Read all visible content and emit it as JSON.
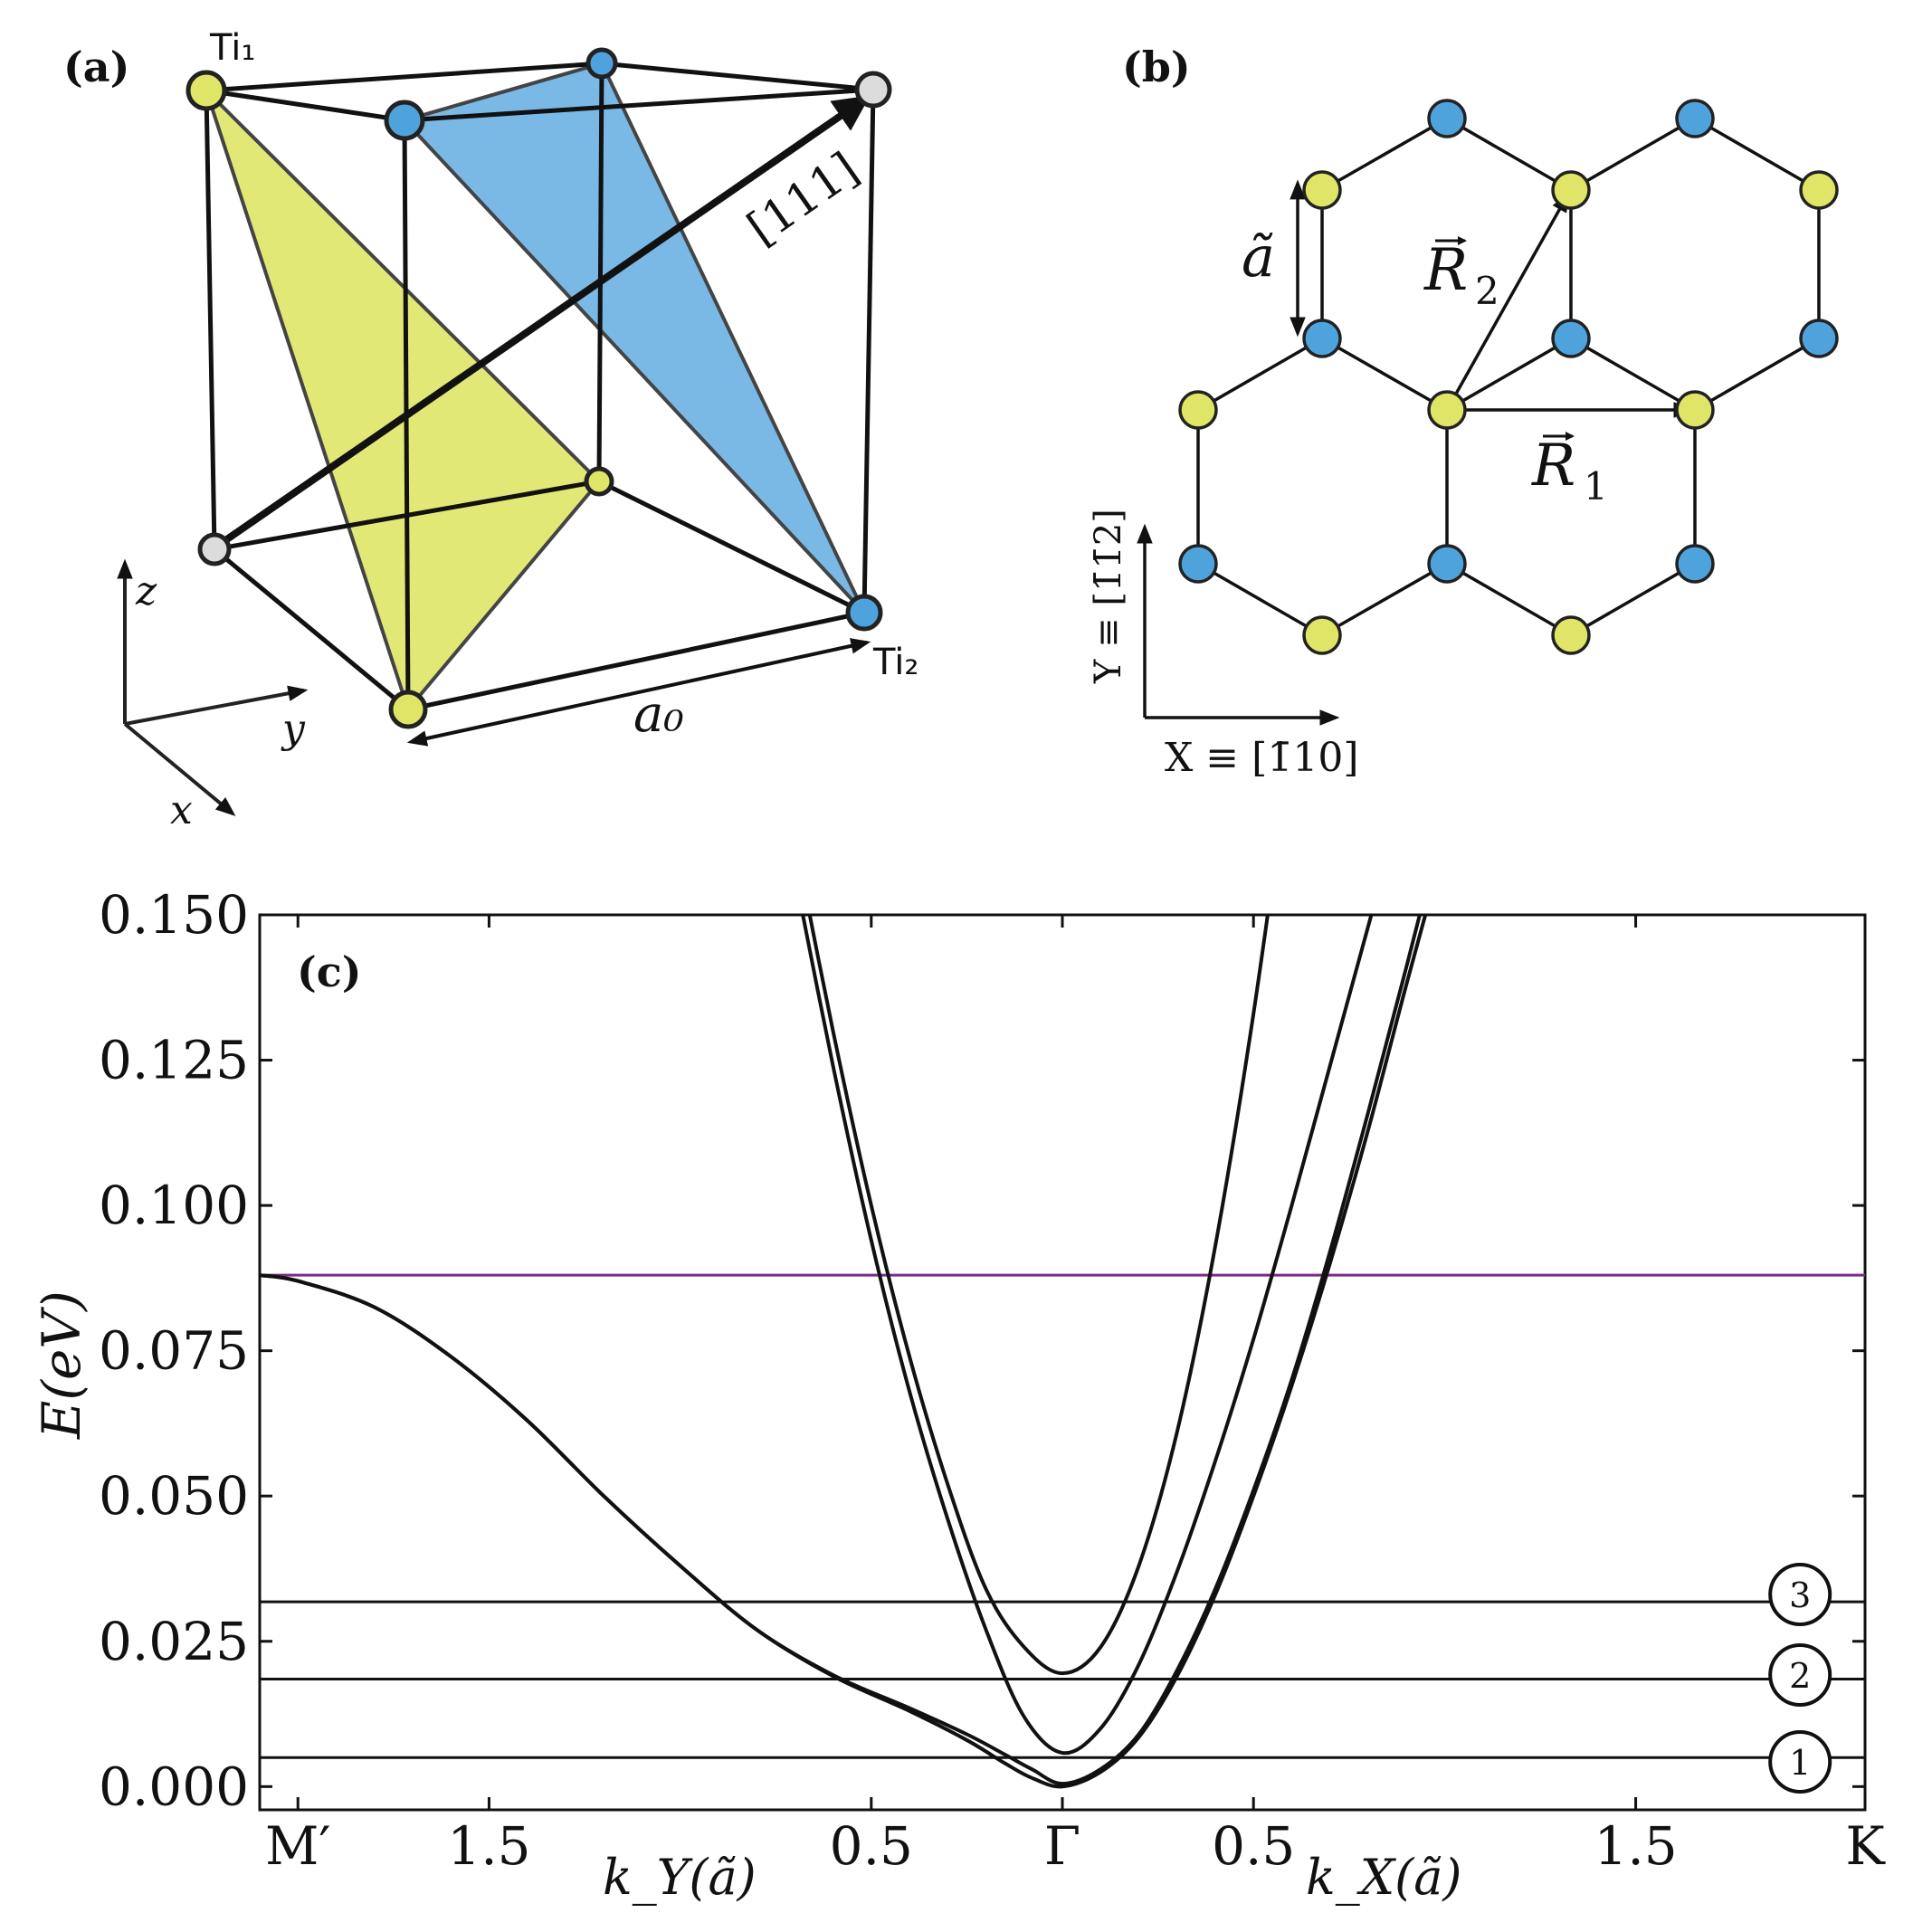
{
  "colors": {
    "yellow": "#dfe566",
    "blue": "#4fa3dc",
    "grey": "#dcdcdc",
    "yellow_plane": "#dde45e",
    "blue_plane": "#63ade0",
    "fermi_line": "#7b2a8a",
    "ink": "#111111"
  },
  "panel_a": {
    "label": "(a)",
    "ti1": "Ti₁",
    "ti2": "Ti₂",
    "direction": "[111]",
    "lattice_const": "a₀",
    "axis_x": "x",
    "axis_y": "y",
    "axis_z": "z"
  },
  "panel_b": {
    "label": "(b)",
    "a_tilde": "ã",
    "r1": "R",
    "r1_sub": "1",
    "r2": "R",
    "r2_sub": "2",
    "x_axis_label": "X ≡ [1̄10]",
    "y_axis_label": "Y ≡ [1̄1̄2]"
  },
  "chart_data": {
    "type": "line",
    "panel_label": "(c)",
    "ylabel": "E(eV)",
    "ylim": [
      -0.004,
      0.15
    ],
    "yticks": [
      "0.000",
      "0.025",
      "0.050",
      "0.075",
      "0.100",
      "0.125",
      "0.150"
    ],
    "ytick_values": [
      0.0,
      0.025,
      0.05,
      0.075,
      0.1,
      0.125,
      0.15
    ],
    "xlim": [
      -2.1,
      2.1
    ],
    "xticks": [
      "M′",
      "1.5",
      "0.5",
      "Γ",
      "0.5",
      "1.5",
      "K"
    ],
    "xtick_values": [
      -2.0,
      -1.5,
      -0.5,
      0.0,
      0.5,
      1.5,
      2.1
    ],
    "xlabel_left": "k_Y(ã)",
    "xlabel_right": "k_X(ã)",
    "fermi_level": 0.088,
    "levels": [
      {
        "label": "1",
        "energy": 0.005
      },
      {
        "label": "2",
        "energy": 0.0185
      },
      {
        "label": "3",
        "energy": 0.0318
      }
    ],
    "series": [
      {
        "points": [
          [
            -2.1,
            0.088
          ],
          [
            -2.0,
            0.087
          ],
          [
            -1.8,
            0.0825
          ],
          [
            -1.6,
            0.074
          ],
          [
            -1.4,
            0.063
          ],
          [
            -1.2,
            0.05
          ],
          [
            -1.0,
            0.038
          ],
          [
            -0.8,
            0.027
          ],
          [
            -0.6,
            0.019
          ],
          [
            -0.4,
            0.013
          ],
          [
            -0.25,
            0.008
          ],
          [
            -0.15,
            0.004
          ],
          [
            -0.08,
            0.0015
          ],
          [
            0.0,
            0.0
          ],
          [
            0.1,
            0.0025
          ],
          [
            0.2,
            0.0085
          ],
          [
            0.3,
            0.019
          ],
          [
            0.4,
            0.033
          ],
          [
            0.5,
            0.05
          ],
          [
            0.6,
            0.069
          ],
          [
            0.7,
            0.09
          ],
          [
            0.8,
            0.113
          ],
          [
            0.9,
            0.138
          ],
          [
            1.0,
            0.162
          ]
        ]
      },
      {
        "points": [
          [
            -2.1,
            0.088
          ],
          [
            -2.0,
            0.087
          ],
          [
            -1.8,
            0.0825
          ],
          [
            -1.6,
            0.074
          ],
          [
            -1.4,
            0.063
          ],
          [
            -1.2,
            0.05
          ],
          [
            -1.0,
            0.038
          ],
          [
            -0.8,
            0.027
          ],
          [
            -0.6,
            0.0192
          ],
          [
            -0.4,
            0.0135
          ],
          [
            -0.25,
            0.009
          ],
          [
            -0.15,
            0.0055
          ],
          [
            -0.08,
            0.003
          ],
          [
            0.0,
            0.0005
          ],
          [
            0.1,
            0.003
          ],
          [
            0.2,
            0.009
          ],
          [
            0.3,
            0.02
          ],
          [
            0.4,
            0.034
          ],
          [
            0.5,
            0.051
          ],
          [
            0.6,
            0.07
          ],
          [
            0.7,
            0.092
          ],
          [
            0.8,
            0.116
          ],
          [
            0.9,
            0.141
          ],
          [
            1.0,
            0.167
          ]
        ]
      },
      {
        "points": [
          [
            -0.7,
            0.157
          ],
          [
            -0.6,
            0.124
          ],
          [
            -0.5,
            0.094
          ],
          [
            -0.4,
            0.068
          ],
          [
            -0.3,
            0.046
          ],
          [
            -0.2,
            0.027
          ],
          [
            -0.1,
            0.012
          ],
          [
            0.0,
            0.0058
          ],
          [
            0.1,
            0.01
          ],
          [
            0.2,
            0.021
          ],
          [
            0.3,
            0.037
          ],
          [
            0.4,
            0.056
          ],
          [
            0.5,
            0.077
          ],
          [
            0.6,
            0.1
          ],
          [
            0.7,
            0.124
          ],
          [
            0.8,
            0.148
          ],
          [
            0.85,
            0.16
          ]
        ]
      },
      {
        "points": [
          [
            -0.7,
            0.163
          ],
          [
            -0.6,
            0.13
          ],
          [
            -0.5,
            0.1
          ],
          [
            -0.4,
            0.074
          ],
          [
            -0.3,
            0.052
          ],
          [
            -0.2,
            0.034
          ],
          [
            -0.1,
            0.024
          ],
          [
            0.0,
            0.0195
          ],
          [
            0.1,
            0.024
          ],
          [
            0.2,
            0.038
          ],
          [
            0.3,
            0.061
          ],
          [
            0.4,
            0.093
          ],
          [
            0.5,
            0.133
          ],
          [
            0.6,
            0.18
          ]
        ]
      }
    ]
  }
}
